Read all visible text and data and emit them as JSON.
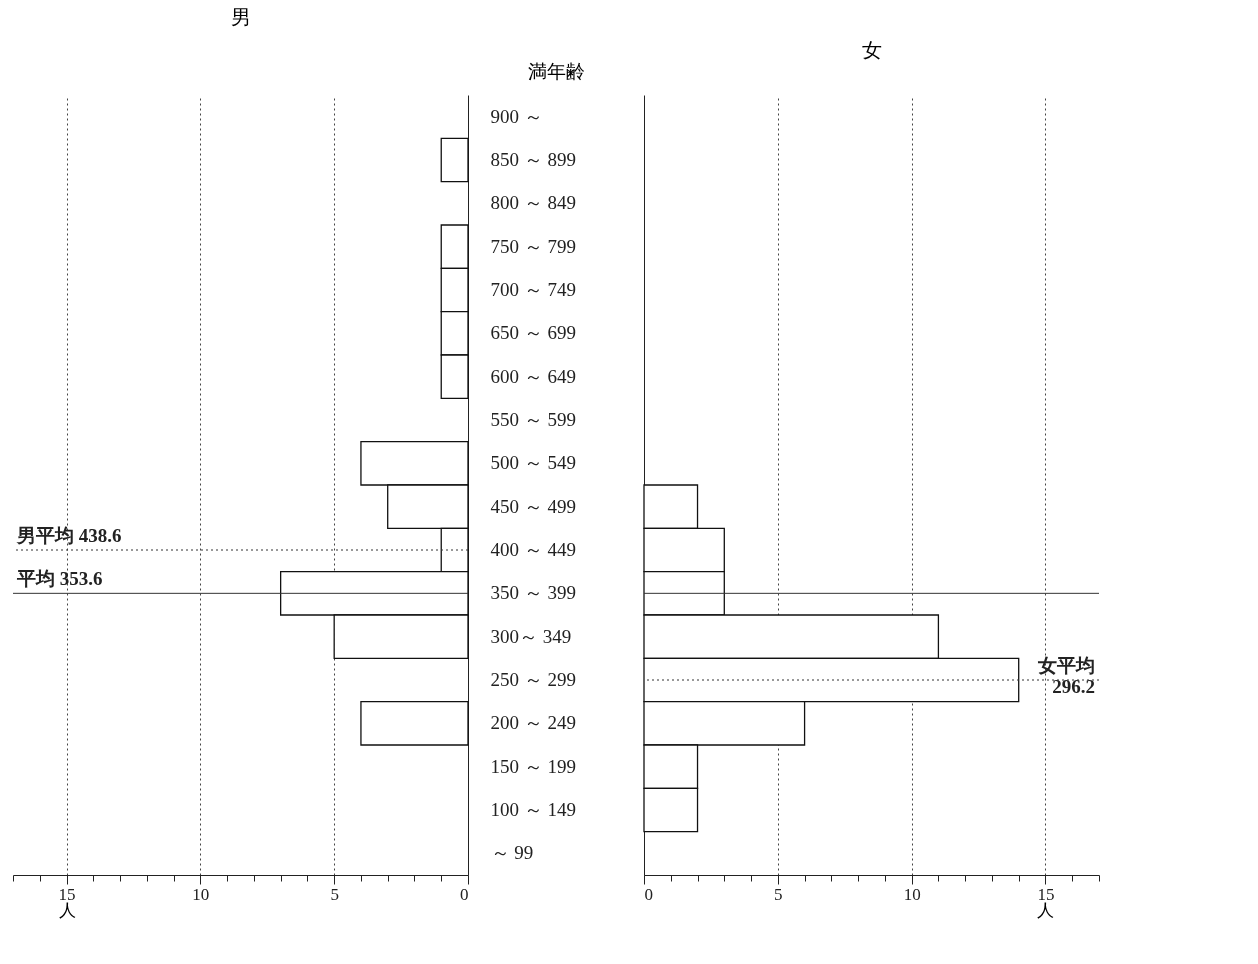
{
  "chart_data": [
    {
      "type": "bar",
      "orientation": "horizontal",
      "title": "男",
      "ylabel": "満年齢",
      "xlabel": "人",
      "categories": [
        "900 ～",
        "850 ～ 899",
        "800 ～ 849",
        "750 ～ 799",
        "700 ～ 749",
        "650 ～ 699",
        "600 ～ 649",
        "550 ～ 599",
        "500 ～ 549",
        "450 ～ 499",
        "400 ～ 449",
        "350 ～ 399",
        "300～ 349",
        "250 ～ 299",
        "200 ～ 249",
        "150 ～ 199",
        "100 ～ 149",
        "～ 99"
      ],
      "series": [
        {
          "color": "#ffffff",
          "values": [
            0,
            1,
            0,
            1,
            1,
            1,
            1,
            0,
            4,
            3,
            1,
            7,
            5,
            0,
            4,
            0,
            0,
            0
          ]
        }
      ],
      "xlim": [
        17,
        0
      ],
      "xticks": [
        {
          "value": 17,
          "label": null
        },
        {
          "value": 16,
          "label": null
        },
        15,
        {
          "value": 14,
          "label": null
        },
        {
          "value": 13,
          "label": null
        },
        {
          "value": 12,
          "label": null
        },
        {
          "value": 11,
          "label": null
        },
        10,
        {
          "value": 9,
          "label": null
        },
        {
          "value": 8,
          "label": null
        },
        {
          "value": 7,
          "label": null
        },
        {
          "value": 6,
          "label": null
        },
        5,
        {
          "value": 4,
          "label": null
        },
        {
          "value": 3,
          "label": null
        },
        {
          "value": 2,
          "label": null
        },
        {
          "value": 1,
          "label": null
        },
        0
      ],
      "grid": "x",
      "ref_lines": [
        {
          "axis": "y",
          "value": "400 ～ 449",
          "label": "男平均 438.6",
          "line_style": "dotted"
        },
        {
          "axis": "y",
          "value": "350 ～ 399",
          "label": "平均 353.6",
          "line_style": "solid"
        }
      ]
    },
    {
      "type": "bar",
      "orientation": "horizontal",
      "title": "女",
      "xlabel": "人",
      "tick_labels": "x",
      "categories": [
        "900 ～",
        "850 ～ 899",
        "800 ～ 849",
        "750 ～ 799",
        "700 ～ 749",
        "650 ～ 699",
        "600 ～ 649",
        "550 ～ 599",
        "500 ～ 549",
        "450 ～ 499",
        "400 ～ 449",
        "350 ～ 399",
        "300～ 349",
        "250 ～ 299",
        "200 ～ 249",
        "150 ～ 199",
        "100 ～ 149",
        "～ 99"
      ],
      "series": [
        {
          "color": "#ffffff",
          "values": [
            0,
            0,
            0,
            0,
            0,
            0,
            0,
            0,
            0,
            2,
            3,
            3,
            11,
            14,
            6,
            2,
            2,
            0
          ]
        }
      ],
      "xlim": [
        0,
        17
      ],
      "xticks": [
        0,
        {
          "value": 1,
          "label": null
        },
        {
          "value": 2,
          "label": null
        },
        {
          "value": 3,
          "label": null
        },
        {
          "value": 4,
          "label": null
        },
        5,
        {
          "value": 6,
          "label": null
        },
        {
          "value": 7,
          "label": null
        },
        {
          "value": 8,
          "label": null
        },
        {
          "value": 9,
          "label": null
        },
        10,
        {
          "value": 11,
          "label": null
        },
        {
          "value": 12,
          "label": null
        },
        {
          "value": 13,
          "label": null
        },
        {
          "value": 14,
          "label": null
        },
        15,
        {
          "value": 16,
          "label": null
        },
        {
          "value": 17,
          "label": null
        }
      ],
      "grid": "x",
      "ref_lines": [
        {
          "axis": "y",
          "value": "350 ～ 399",
          "label": null,
          "line_style": "solid"
        },
        {
          "axis": "y",
          "value": "250 ～ 299",
          "label": "女平均\n296.2",
          "line_style": "dotted"
        }
      ]
    }
  ]
}
